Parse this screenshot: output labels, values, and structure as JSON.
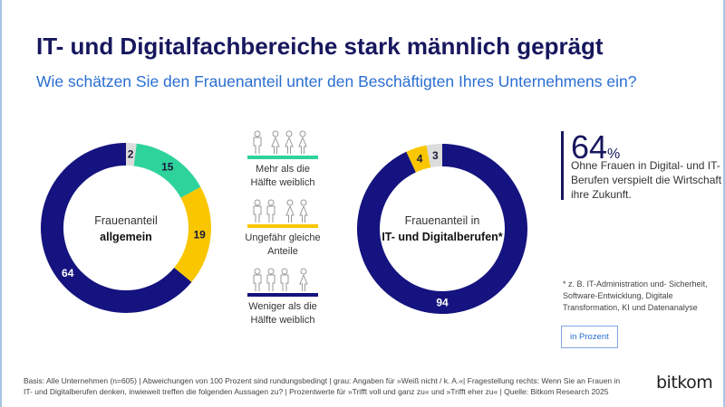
{
  "title": "IT- und Digitalfachbereiche stark männlich geprägt",
  "subtitle": "Wie schätzen Sie den Frauenanteil unter den Beschäftigten Ihres Unternehmens ein?",
  "colors": {
    "navy": "#15137f",
    "green": "#2ed39c",
    "yellow": "#f9c600",
    "gray": "#dcdcdc",
    "title": "#17175e",
    "accent": "#2a6ed1"
  },
  "legend": [
    {
      "label_line1": "Mehr als die",
      "label_line2": "Hälfte weiblich",
      "color": "#2ed39c",
      "icon": "three-women-one-man-icon"
    },
    {
      "label_line1": "Ungefähr gleiche",
      "label_line2": "Anteile",
      "color": "#f9c600",
      "icon": "two-women-two-men-icon"
    },
    {
      "label_line1": "Weniger als die",
      "label_line2": "Hälfte weiblich",
      "color": "#15137f",
      "icon": "one-woman-three-men-icon"
    }
  ],
  "chart_data": [
    {
      "type": "pie",
      "variant": "donut",
      "center_line1": "Frauenanteil",
      "center_line2": "allgemein",
      "slices": [
        {
          "category": "Weiß nicht / k. A.",
          "value": 2,
          "color": "#dcdcdc"
        },
        {
          "category": "Mehr als die Hälfte weiblich",
          "value": 15,
          "color": "#2ed39c"
        },
        {
          "category": "Ungefähr gleiche Anteile",
          "value": 19,
          "color": "#f9c600"
        },
        {
          "category": "Weniger als die Hälfte weiblich",
          "value": 64,
          "color": "#15137f"
        }
      ]
    },
    {
      "type": "pie",
      "variant": "donut",
      "center_line1": "Frauenanteil in",
      "center_line2": "IT- und Digitalberufen*",
      "slices": [
        {
          "category": "Weniger als die Hälfte weiblich",
          "value": 94,
          "color": "#15137f"
        },
        {
          "category": "Ungefähr gleiche Anteile",
          "value": 4,
          "color": "#f9c600"
        },
        {
          "category": "Weiß nicht / k. A.",
          "value": 3,
          "color": "#dcdcdc"
        }
      ]
    }
  ],
  "stat": {
    "value": "64",
    "unit": "%",
    "text": "Ohne Frauen in Digital- und IT-Berufen verspielt die Wirtschaft ihre Zukunft."
  },
  "footnote": "* z. B. IT-Administration und- Sicherheit, Software-Entwicklung, Digitale Transformation, KI und Datenanalyse",
  "unit_label": "in Prozent",
  "basis": "Basis: Alle Unternehmen (n=605) | Abweichungen von 100 Prozent sind rundungsbedingt | grau: Angaben für »Weiß nicht / k. A.«| Fragestellung rechts: Wenn Sie an Frauen in IT- und Digitalberufen denken, inwieweit treffen die folgenden Aussagen zu? | Prozentwerte für »Trifft voll und ganz zu« und »Trifft eher zu« | Quelle: Bitkom Research 2025",
  "logo": "bitkom"
}
